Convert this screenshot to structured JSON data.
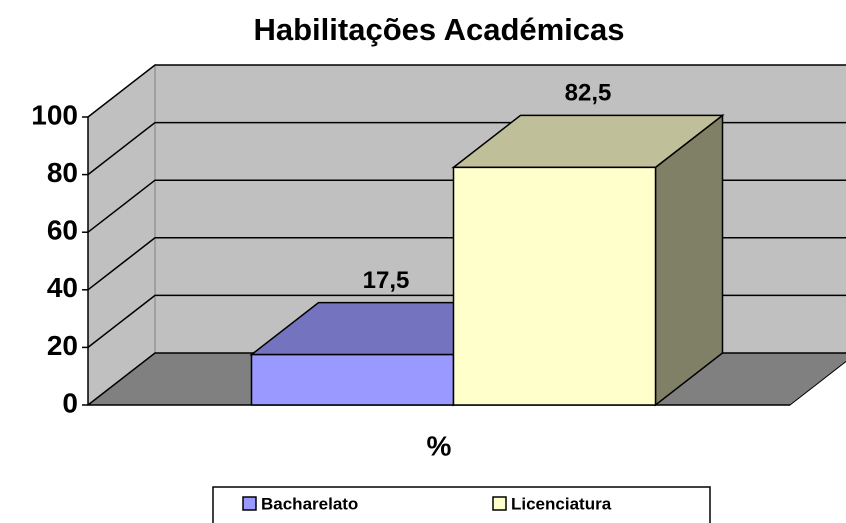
{
  "chart_data": {
    "type": "bar3d",
    "title": "Habilitações Académicas",
    "categories": [
      "%"
    ],
    "series": [
      {
        "name": "Bacharelato",
        "color": "#9999ff",
        "values": [
          17.5
        ],
        "value_labels": [
          "17,5"
        ]
      },
      {
        "name": "Licenciatura",
        "color": "#ffffcc",
        "values": [
          82.5
        ],
        "value_labels": [
          "82,5"
        ]
      }
    ],
    "ylim": [
      0,
      100
    ],
    "yticks": [
      0,
      20,
      40,
      60,
      80,
      100
    ],
    "grid": true,
    "legend": "bottom"
  }
}
